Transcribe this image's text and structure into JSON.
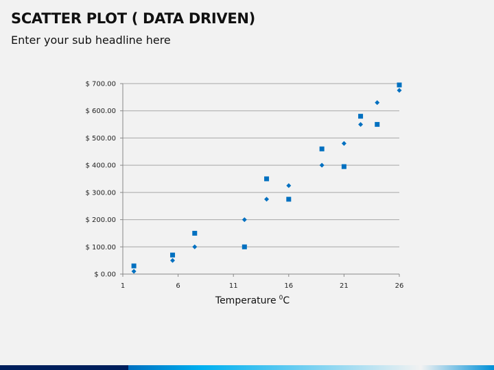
{
  "slide": {
    "title": "SCATTER PLOT ( DATA DRIVEN)",
    "subtitle": "Enter your sub headline here"
  },
  "colors": {
    "background": "#f2f2f2",
    "series": "#0070c0",
    "gridline": "#a6a6a6",
    "footer_dark": "#001f5c",
    "footer_gradient": [
      "#0070c0",
      "#00b0f0",
      "#f2f2f2",
      "#0090d8"
    ]
  },
  "chart_data": {
    "type": "scatter",
    "title": "",
    "xlabel": "Temperature",
    "xlabel_superscript": "0",
    "xlabel_unit": "C",
    "ylabel": "",
    "xlim": [
      1,
      26
    ],
    "ylim": [
      0,
      700
    ],
    "x_ticks": [
      1,
      6,
      11,
      16,
      21,
      26
    ],
    "y_ticks": [
      0,
      100,
      200,
      300,
      400,
      500,
      600,
      700
    ],
    "y_tick_labels": [
      "$ 0.00",
      "$ 100.00",
      "$ 200.00",
      "$ 300.00",
      "$ 400.00",
      "$ 500.00",
      "$ 600.00",
      "$ 700.00"
    ],
    "grid": "horizontal",
    "legend": "none",
    "series": [
      {
        "marker": "diamond",
        "points": [
          [
            2,
            10
          ],
          [
            5.5,
            50
          ],
          [
            7.5,
            100
          ],
          [
            12,
            200
          ],
          [
            14,
            275
          ],
          [
            16,
            325
          ],
          [
            19,
            400
          ],
          [
            21,
            480
          ],
          [
            22.5,
            550
          ],
          [
            24,
            630
          ],
          [
            26,
            675
          ]
        ]
      },
      {
        "marker": "square",
        "points": [
          [
            2,
            30
          ],
          [
            5.5,
            70
          ],
          [
            7.5,
            150
          ],
          [
            12,
            100
          ],
          [
            14,
            350
          ],
          [
            16,
            275
          ],
          [
            19,
            460
          ],
          [
            21,
            395
          ],
          [
            22.5,
            580
          ],
          [
            24,
            550
          ],
          [
            26,
            695
          ]
        ]
      }
    ]
  }
}
